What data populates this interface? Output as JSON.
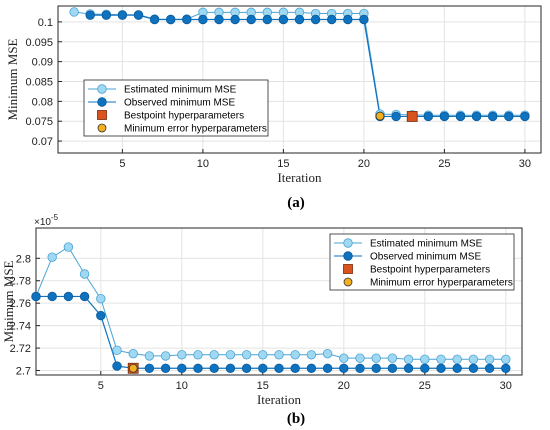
{
  "figure": {
    "panels": [
      {
        "caption": "(a)"
      },
      {
        "caption": "(b)"
      }
    ]
  },
  "colors": {
    "estimated": "#9fd8f0",
    "estimated_stroke": "#4aa3d6",
    "observed": "#0f72bf",
    "observed_stroke": "#0a5a9a",
    "bestpoint": "#d9531e",
    "bestpoint_stroke": "#7a2a0a",
    "min_error": "#f2b01e",
    "min_error_stroke": "#333333",
    "grid": "#e3e3e3",
    "axis": "#262626"
  },
  "chart_data": [
    {
      "type": "line",
      "xlabel": "Iteration",
      "ylabel": "Minimum MSE",
      "xlim": [
        1,
        31
      ],
      "ylim": [
        0.067,
        0.104
      ],
      "xticks": [
        5,
        10,
        15,
        20,
        25,
        30
      ],
      "yticks": [
        0.07,
        0.075,
        0.08,
        0.085,
        0.09,
        0.095,
        0.1
      ],
      "ytick_labels": [
        "0.07",
        "0.075",
        "0.08",
        "0.085",
        "0.09",
        "0.095",
        "0.1"
      ],
      "grid": true,
      "legend_position": "center-left",
      "series": [
        {
          "name": "Estimated minimum MSE",
          "x": [
            2,
            3,
            4,
            5,
            6,
            7,
            8,
            9,
            10,
            11,
            12,
            13,
            14,
            15,
            16,
            17,
            18,
            19,
            20,
            21,
            22,
            23,
            24,
            25,
            26,
            27,
            28,
            29,
            30
          ],
          "y": [
            0.1025,
            0.102,
            0.1019,
            0.1018,
            0.1018,
            0.1007,
            0.1006,
            0.1007,
            0.1024,
            0.1024,
            0.1024,
            0.1024,
            0.1024,
            0.1024,
            0.1024,
            0.1021,
            0.1021,
            0.1021,
            0.1021,
            0.0768,
            0.0767,
            0.0766,
            0.0765,
            0.0765,
            0.0765,
            0.0765,
            0.0765,
            0.0765,
            0.0765
          ]
        },
        {
          "name": "Observed minimum MSE",
          "x": [
            3,
            4,
            5,
            6,
            7,
            8,
            9,
            10,
            11,
            12,
            13,
            14,
            15,
            16,
            17,
            18,
            19,
            20,
            21,
            22,
            23,
            24,
            25,
            26,
            27,
            28,
            29,
            30
          ],
          "y": [
            0.1017,
            0.1017,
            0.1017,
            0.1017,
            0.1006,
            0.1006,
            0.1006,
            0.1006,
            0.1006,
            0.1006,
            0.1006,
            0.1006,
            0.1006,
            0.1006,
            0.1006,
            0.1006,
            0.1006,
            0.1006,
            0.0762,
            0.0762,
            0.0762,
            0.0762,
            0.0762,
            0.0762,
            0.0762,
            0.0762,
            0.0762,
            0.0762
          ]
        },
        {
          "name": "Bestpoint hyperparameters",
          "x": [
            23
          ],
          "y": [
            0.0762
          ]
        },
        {
          "name": "Minimum error hyperparameters",
          "x": [
            21
          ],
          "y": [
            0.0763
          ]
        }
      ]
    },
    {
      "type": "line",
      "xlabel": "Iteration",
      "ylabel": "Minimum MSE",
      "y_exponent_label": "×10",
      "y_exponent_power": "-5",
      "xlim": [
        1,
        31
      ],
      "ylim": [
        2.696,
        2.827
      ],
      "xticks": [
        5,
        10,
        15,
        20,
        25,
        30
      ],
      "yticks": [
        2.7,
        2.72,
        2.74,
        2.76,
        2.78,
        2.8
      ],
      "ytick_labels": [
        "2.7",
        "2.72",
        "2.74",
        "2.76",
        "2.78",
        "2.8"
      ],
      "grid": true,
      "legend_position": "top-right",
      "series": [
        {
          "name": "Estimated minimum MSE",
          "x": [
            1,
            2,
            3,
            4,
            5,
            6,
            7,
            8,
            9,
            10,
            11,
            12,
            13,
            14,
            15,
            16,
            17,
            18,
            19,
            20,
            21,
            22,
            23,
            24,
            25,
            26,
            27,
            28,
            29,
            30
          ],
          "y": [
            2.766,
            2.801,
            2.81,
            2.786,
            2.764,
            2.718,
            2.715,
            2.713,
            2.713,
            2.714,
            2.714,
            2.714,
            2.714,
            2.714,
            2.714,
            2.714,
            2.714,
            2.714,
            2.715,
            2.711,
            2.711,
            2.711,
            2.711,
            2.71,
            2.71,
            2.71,
            2.71,
            2.71,
            2.71,
            2.71
          ]
        },
        {
          "name": "Observed minimum MSE",
          "x": [
            1,
            2,
            3,
            4,
            5,
            6,
            7,
            8,
            9,
            10,
            11,
            12,
            13,
            14,
            15,
            16,
            17,
            18,
            19,
            20,
            21,
            22,
            23,
            24,
            25,
            26,
            27,
            28,
            29,
            30
          ],
          "y": [
            2.766,
            2.766,
            2.766,
            2.766,
            2.749,
            2.704,
            2.702,
            2.702,
            2.702,
            2.702,
            2.702,
            2.702,
            2.702,
            2.702,
            2.702,
            2.702,
            2.702,
            2.702,
            2.702,
            2.702,
            2.702,
            2.702,
            2.702,
            2.702,
            2.702,
            2.702,
            2.702,
            2.702,
            2.702,
            2.702
          ]
        },
        {
          "name": "Bestpoint hyperparameters",
          "x": [
            7
          ],
          "y": [
            2.702
          ]
        },
        {
          "name": "Minimum error hyperparameters",
          "x": [
            7
          ],
          "y": [
            2.702
          ]
        }
      ]
    }
  ]
}
